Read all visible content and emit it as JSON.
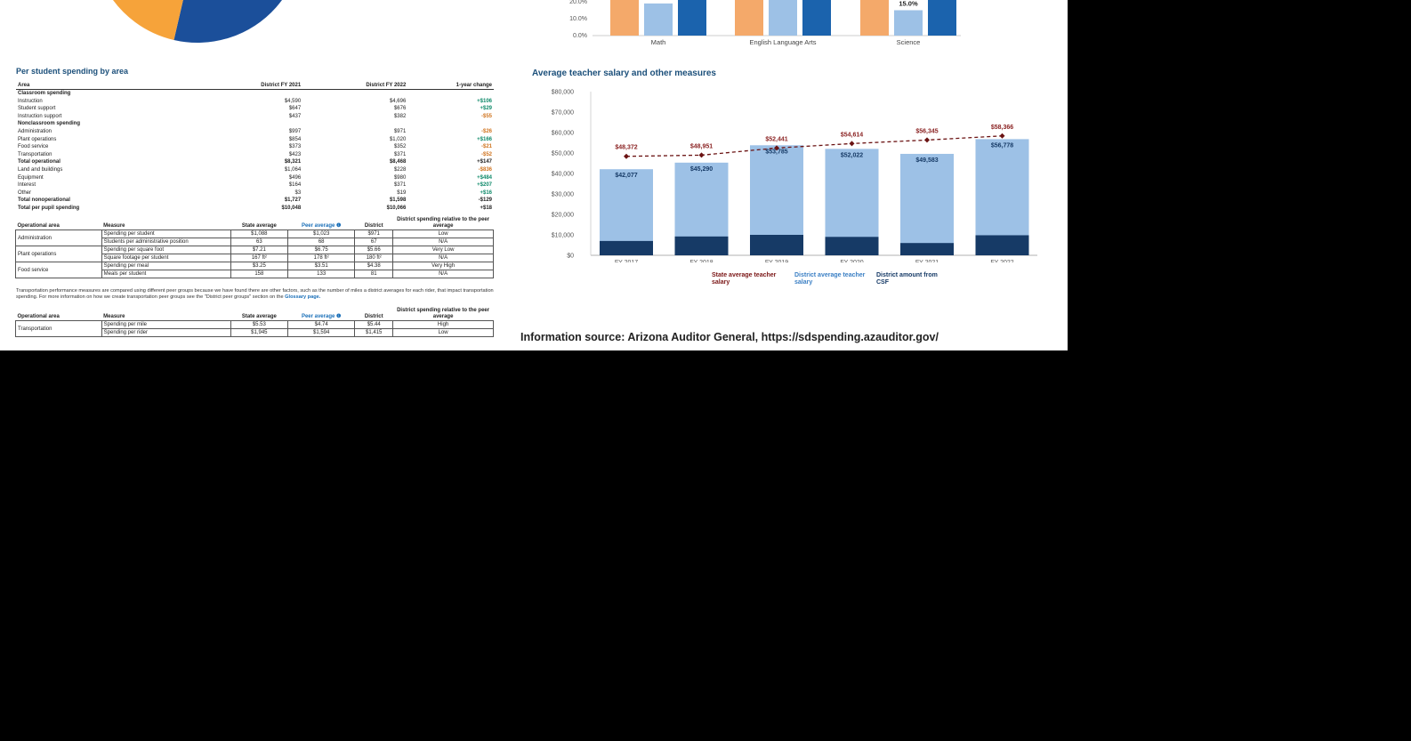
{
  "pie_colors": [
    "#8e3f94",
    "#f6a33a",
    "#1b4f9a"
  ],
  "spend_section": {
    "title": "Per student spending by area",
    "columns": [
      "Area",
      "District FY 2021",
      "District FY 2022",
      "1-year change"
    ],
    "rows": [
      {
        "area": "Classroom spending",
        "fy21": "",
        "fy22": "",
        "change": "",
        "bold": true
      },
      {
        "area": "Instruction",
        "fy21": "$4,590",
        "fy22": "$4,696",
        "change": "+$106"
      },
      {
        "area": "Student support",
        "fy21": "$647",
        "fy22": "$676",
        "change": "+$29"
      },
      {
        "area": "Instruction support",
        "fy21": "$437",
        "fy22": "$382",
        "change": "-$55"
      },
      {
        "area": "Nonclassroom spending",
        "fy21": "",
        "fy22": "",
        "change": "",
        "bold": true
      },
      {
        "area": "Administration",
        "fy21": "$997",
        "fy22": "$971",
        "change": "-$26"
      },
      {
        "area": "Plant operations",
        "fy21": "$854",
        "fy22": "$1,020",
        "change": "+$166"
      },
      {
        "area": "Food service",
        "fy21": "$373",
        "fy22": "$352",
        "change": "-$21"
      },
      {
        "area": "Transportation",
        "fy21": "$423",
        "fy22": "$371",
        "change": "-$52"
      },
      {
        "area": "Total operational",
        "fy21": "$8,321",
        "fy22": "$8,468",
        "change": "+$147",
        "bold": true
      },
      {
        "area": "Land and buildings",
        "fy21": "$1,064",
        "fy22": "$228",
        "change": "-$836"
      },
      {
        "area": "Equipment",
        "fy21": "$496",
        "fy22": "$980",
        "change": "+$484"
      },
      {
        "area": "Interest",
        "fy21": "$164",
        "fy22": "$371",
        "change": "+$207"
      },
      {
        "area": "Other",
        "fy21": "$3",
        "fy22": "$19",
        "change": "+$16"
      },
      {
        "area": "Total nonoperational",
        "fy21": "$1,727",
        "fy22": "$1,598",
        "change": "-$129",
        "bold": true
      },
      {
        "area": "Total per pupil spending",
        "fy21": "$10,048",
        "fy22": "$10,066",
        "change": "+$18",
        "bold": true
      }
    ]
  },
  "ops_table": {
    "headers": [
      "Operational area",
      "Measure",
      "State average",
      "Peer average",
      "District",
      "District spending relative to the peer average"
    ],
    "rows": [
      {
        "area": "Administration",
        "measure": "Spending per student",
        "state": "$1,088",
        "peer": "$1,023",
        "district": "$971",
        "relative": "Low"
      },
      {
        "area": "",
        "measure": "Students per administrative position",
        "state": "63",
        "peer": "68",
        "district": "67",
        "relative": "N/A"
      },
      {
        "area": "Plant operations",
        "measure": "Spending per square foot",
        "state": "$7.21",
        "peer": "$6.75",
        "district": "$5.66",
        "relative": "Very Low"
      },
      {
        "area": "",
        "measure": "Square footage per student",
        "state": "167 ft²",
        "peer": "178 ft²",
        "district": "180 ft²",
        "relative": "N/A"
      },
      {
        "area": "Food service",
        "measure": "Spending per meal",
        "state": "$3.25",
        "peer": "$3.51",
        "district": "$4.38",
        "relative": "Very High"
      },
      {
        "area": "",
        "measure": "Meals per student",
        "state": "158",
        "peer": "133",
        "district": "81",
        "relative": "N/A"
      }
    ]
  },
  "transport_note": {
    "text": "Transportation performance measures are compared using different peer groups because we have found there are other factors, such as the number of miles a district averages for each rider, that impact transportation spending. For more information on how we create transportation peer groups see the \"District peer groups\" section on the",
    "link": "Glossary page."
  },
  "transport_table": {
    "headers": [
      "Operational area",
      "Measure",
      "State average",
      "Peer average",
      "District",
      "District spending relative to the peer average"
    ],
    "rows": [
      {
        "area": "Transportation",
        "measure": "Spending per mile",
        "state": "$5.53",
        "peer": "$4.74",
        "district": "$5.44",
        "relative": "High"
      },
      {
        "area": "",
        "measure": "Spending per rider",
        "state": "$1,945",
        "peer": "$1,594",
        "district": "$1,415",
        "relative": "Low"
      }
    ]
  },
  "chart_data": [
    {
      "type": "bar",
      "categories": [
        "Math",
        "English Language Arts",
        "Science"
      ],
      "series": [
        {
          "color": "#f4a96a",
          "values": [
            30,
            30,
            30
          ]
        },
        {
          "color": "#9dc1e6",
          "values": [
            19,
            30,
            15
          ]
        },
        {
          "color": "#1b63ad",
          "values": [
            30,
            30,
            30
          ]
        }
      ],
      "ytick_labels": [
        "0.0%",
        "10.0%",
        "20.0%"
      ],
      "ylim": [
        0,
        30
      ],
      "data_labels": [
        {
          "series": 1,
          "index": 2,
          "text": "15.0%"
        }
      ]
    },
    {
      "type": "bar",
      "title": "Average teacher salary and other measures",
      "categories": [
        "FY 2017",
        "FY 2018",
        "FY 2019",
        "FY 2020",
        "FY 2021",
        "FY 2022"
      ],
      "ylim": [
        0,
        80000
      ],
      "yticks": [
        0,
        10000,
        20000,
        30000,
        40000,
        50000,
        60000,
        70000,
        80000
      ],
      "ytick_labels": [
        "$0",
        "$10,000",
        "$20,000",
        "$30,000",
        "$40,000",
        "$50,000",
        "$60,000",
        "$70,000",
        "$80,000"
      ],
      "series": [
        {
          "name": "State average teacher salary",
          "kind": "line",
          "color": "#6b1313",
          "values": [
            48372,
            48951,
            52441,
            54614,
            56345,
            58366
          ],
          "labels": [
            "$48,372",
            "$48,951",
            "$52,441",
            "$54,614",
            "$56,345",
            "$58,366"
          ]
        },
        {
          "name": "District average teacher salary",
          "kind": "bar",
          "color": "#9dc1e6",
          "values": [
            42077,
            45290,
            53785,
            52022,
            49583,
            56778
          ],
          "labels": [
            "$42,077",
            "$45,290",
            "$53,785",
            "$52,022",
            "$49,583",
            "$56,778"
          ]
        },
        {
          "name": "District amount from CSF",
          "kind": "bar",
          "color": "#163a66",
          "values": [
            7000,
            9200,
            10000,
            9000,
            6000,
            9800
          ]
        }
      ],
      "legend": {
        "placement": "bottom",
        "items": [
          "State average teacher salary",
          "District average teacher salary",
          "District amount from CSF"
        ]
      }
    }
  ],
  "source": "Information source: Arizona Auditor General, https://sdspending.azauditor.gov/"
}
